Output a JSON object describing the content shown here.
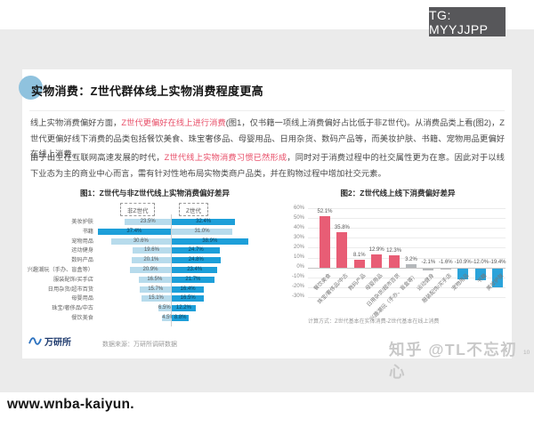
{
  "overlays": {
    "tg_badge": "TG: MYYJJPP",
    "zhihu_watermark": "知乎 @TL不忘初心",
    "page_number": "10",
    "url": "www.wnba-kaiyun."
  },
  "slide": {
    "title": "实物消费：Z世代群体线上实物消费程度更高",
    "paragraph1": [
      {
        "text": "线上实物消费偏好方面，",
        "highlight": false
      },
      {
        "text": "Z世代更偏好在线上进行消费",
        "highlight": true
      },
      {
        "text": "(图1，仅书籍一项线上消费偏好占比低于非Z世代)。从消费品类上看(图2)，Z世代更偏好线下消费的品类包括餐饮美食、珠宝奢侈品、母婴用品、日用杂货、数码产品等，而美妆护肤、书籍、宠物用品更偏好在线上消费。",
        "highlight": false
      }
    ],
    "paragraph2": [
      {
        "text": "由于出生在互联网高速发展的时代，",
        "highlight": false
      },
      {
        "text": "Z世代线上实物消费习惯已然形成",
        "highlight": true
      },
      {
        "text": "，同时对于消费过程中的社交属性更为在意。因此对于以线下业态为主的商业中心而言，需有针对性地布局实物类商户品类，并在购物过程中增加社交元素。",
        "highlight": false
      }
    ],
    "footer": {
      "logo_text": "万研所",
      "source": "数据来源：万研所调研数据"
    }
  },
  "chart_data": [
    {
      "type": "bar",
      "orientation": "horizontal-diverging",
      "title": "图1：Z世代与非Z世代线上实物消费偏好差异",
      "legend": [
        "非Z世代",
        "Z世代"
      ],
      "categories": [
        "美妆护肤",
        "书籍",
        "宠物用品",
        "运动健身",
        "数码产品",
        "兴趣潮玩（手办、盲盒等）",
        "服装配饰/买手店",
        "日用杂货/超市百货",
        "母婴用品",
        "珠宝/奢侈品/中古",
        "餐饮美食"
      ],
      "series": [
        {
          "name": "非Z世代",
          "values": [
            23.5,
            37.4,
            30.6,
            19.6,
            20.1,
            20.9,
            16.5,
            15.7,
            15.1,
            6.5,
            4.5
          ]
        },
        {
          "name": "Z世代",
          "values": [
            32.4,
            31.0,
            38.9,
            24.7,
            24.8,
            23.4,
            21.7,
            16.4,
            16.5,
            12.2,
            8.8
          ]
        }
      ],
      "unit": "%",
      "colors": {
        "light": "#b7dbec",
        "dark": "#1d9fd9"
      },
      "legend_position": "top"
    },
    {
      "type": "bar",
      "title": "图2：Z世代线上线下消费偏好差异",
      "categories": [
        "餐饮美食",
        "珠宝/奢侈品/中古",
        "数码产品",
        "母婴用品",
        "日用杂货/超市百货",
        "兴趣潮玩（手办、盲盒等）",
        "运动健身",
        "服装配饰/买手店",
        "宠物用品",
        "书籍",
        "美妆护肤"
      ],
      "values": [
        52.1,
        35.8,
        8.1,
        12.9,
        12.3,
        3.2,
        -2.1,
        -1.6,
        -10.9,
        -12.0,
        -19.4
      ],
      "bar_roles": [
        "pos",
        "pos",
        "pos",
        "pos",
        "pos",
        "neu",
        "neu",
        "neu",
        "neg",
        "neg",
        "neg"
      ],
      "colors": {
        "pos": "#e85d75",
        "neu": "#b4b7ba",
        "neg": "#2aa3da"
      },
      "ylim": [
        -30,
        60
      ],
      "yticks": [
        60,
        50,
        40,
        30,
        20,
        10,
        0,
        -10,
        -20,
        -30
      ],
      "unit": "%",
      "grid": true,
      "note": "计算方式：Z世代基本在实体消费-Z世代基本在线上消费"
    }
  ]
}
